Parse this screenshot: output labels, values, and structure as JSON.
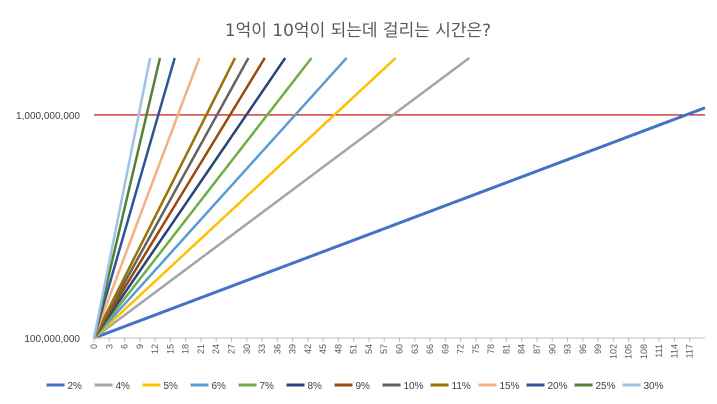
{
  "chart_data": {
    "type": "line",
    "title": "1억이 10억이 되는데 걸리는 시간은?",
    "y_scale": "log",
    "ylim": [
      100000000,
      1800000000
    ],
    "y_tick_labels": [
      {
        "value": 100000000,
        "label": "100,000,000"
      },
      {
        "value": 1000000000,
        "label": "1,000,000,000"
      }
    ],
    "x_range": [
      0,
      120
    ],
    "x_tick_labels": [
      "0",
      "3",
      "6",
      "9",
      "12",
      "15",
      "18",
      "21",
      "24",
      "27",
      "30",
      "33",
      "36",
      "39",
      "42",
      "45",
      "48",
      "51",
      "54",
      "57",
      "60",
      "63",
      "66",
      "69",
      "72",
      "75",
      "78",
      "81",
      "84",
      "87",
      "90",
      "93",
      "96",
      "99",
      "102",
      "105",
      "108",
      "111",
      "114",
      "117"
    ],
    "reference_line": {
      "value": 1000000000,
      "color": "#c00000"
    },
    "initial_value": 100000000,
    "series": [
      {
        "name": "2%",
        "rate": 0.02,
        "color": "#4472c4",
        "width": 3
      },
      {
        "name": "4%",
        "rate": 0.04,
        "color": "#a5a5a5",
        "width": 2.5
      },
      {
        "name": "5%",
        "rate": 0.05,
        "color": "#ffc000",
        "width": 2.5
      },
      {
        "name": "6%",
        "rate": 0.06,
        "color": "#5b9bd5",
        "width": 2.5
      },
      {
        "name": "7%",
        "rate": 0.07,
        "color": "#70ad47",
        "width": 2.5
      },
      {
        "name": "8%",
        "rate": 0.08,
        "color": "#264478",
        "width": 2.5
      },
      {
        "name": "9%",
        "rate": 0.09,
        "color": "#9e480e",
        "width": 2.5
      },
      {
        "name": "10%",
        "rate": 0.1,
        "color": "#636363",
        "width": 2.5
      },
      {
        "name": "11%",
        "rate": 0.11,
        "color": "#997300",
        "width": 2.5
      },
      {
        "name": "15%",
        "rate": 0.15,
        "color": "#f4b183",
        "width": 2.5
      },
      {
        "name": "20%",
        "rate": 0.2,
        "color": "#2f5597",
        "width": 2.5
      },
      {
        "name": "25%",
        "rate": 0.25,
        "color": "#548235",
        "width": 2.5
      },
      {
        "name": "30%",
        "rate": 0.3,
        "color": "#9dc3e6",
        "width": 2.5
      }
    ],
    "legend_position": "bottom",
    "grid": false
  }
}
